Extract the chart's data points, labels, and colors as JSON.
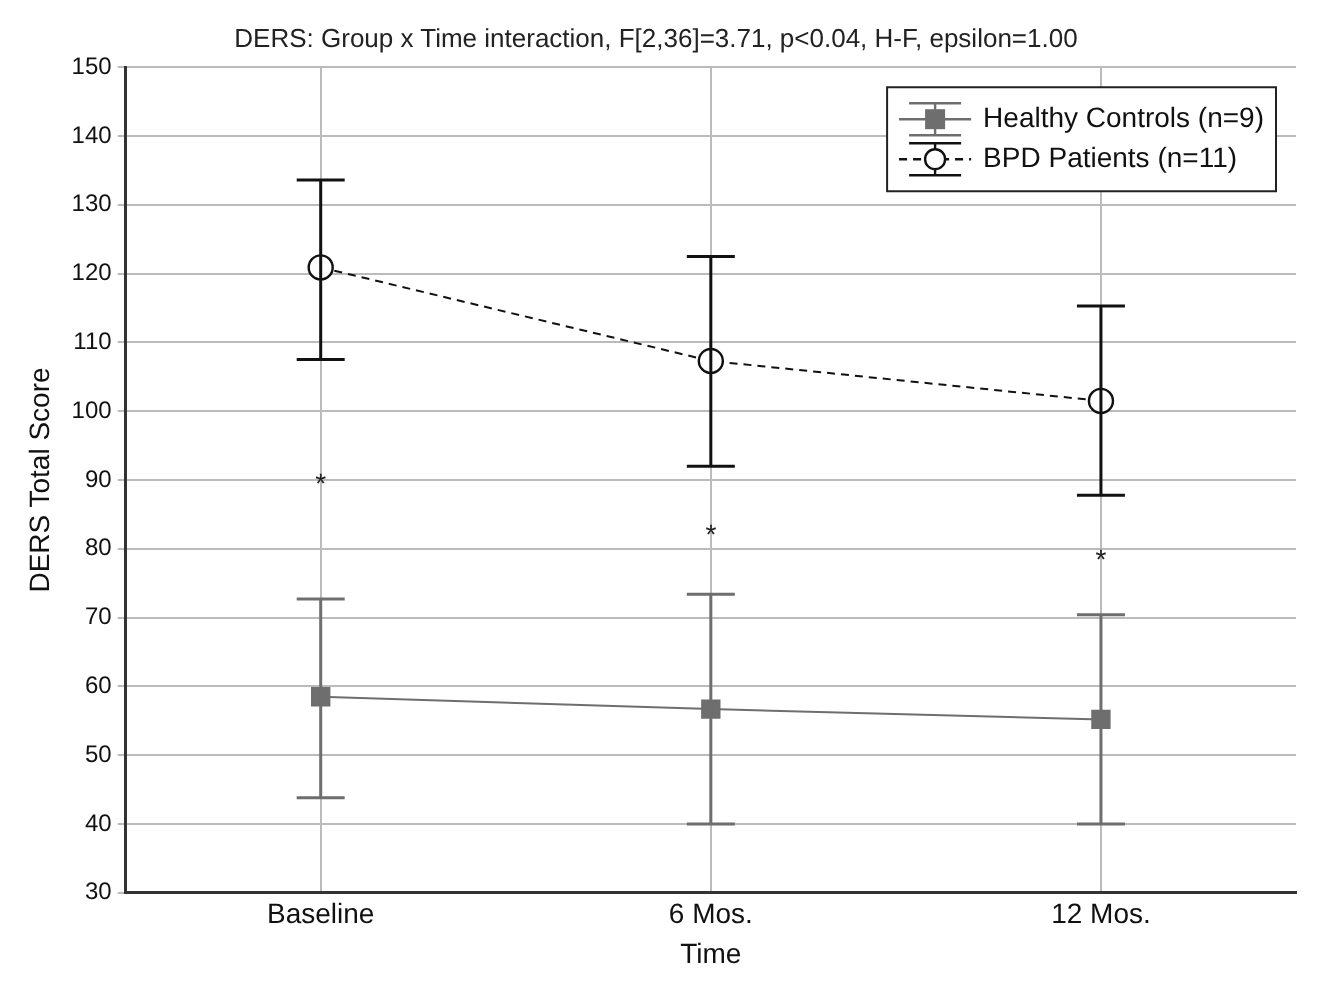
{
  "chart_data": {
    "type": "line",
    "title": "DERS: Group x Time interaction, F[2,36]=3.71, p<0.04, H-F, epsilon=1.00",
    "xlabel": "Time",
    "ylabel": "DERS Total Score",
    "categories": [
      "Baseline",
      "6 Mos.",
      "12 Mos."
    ],
    "series": [
      {
        "name": "Healthy Controls (n=9)",
        "color": "#6e6e6e",
        "values": [
          58.5,
          56.7,
          55.2
        ],
        "errors": [
          [
            43.8,
            72.7
          ],
          [
            40,
            73.4
          ],
          [
            40,
            70.4
          ]
        ],
        "marker": "square",
        "line_style": "solid"
      },
      {
        "name": "BPD Patients (n=11)",
        "color": "#111111",
        "values": [
          120.9,
          107.3,
          101.5
        ],
        "errors": [
          [
            107.5,
            133.6
          ],
          [
            92,
            122.5
          ],
          [
            87.8,
            115.3
          ]
        ],
        "marker": "circle",
        "line_style": "dashed"
      }
    ],
    "annotations": [
      "*",
      "*",
      "*"
    ],
    "ylim": [
      30,
      150
    ],
    "yticks": [
      30,
      40,
      50,
      60,
      70,
      80,
      90,
      100,
      110,
      120,
      130,
      140,
      150
    ],
    "grid": true,
    "legend": "top right"
  }
}
